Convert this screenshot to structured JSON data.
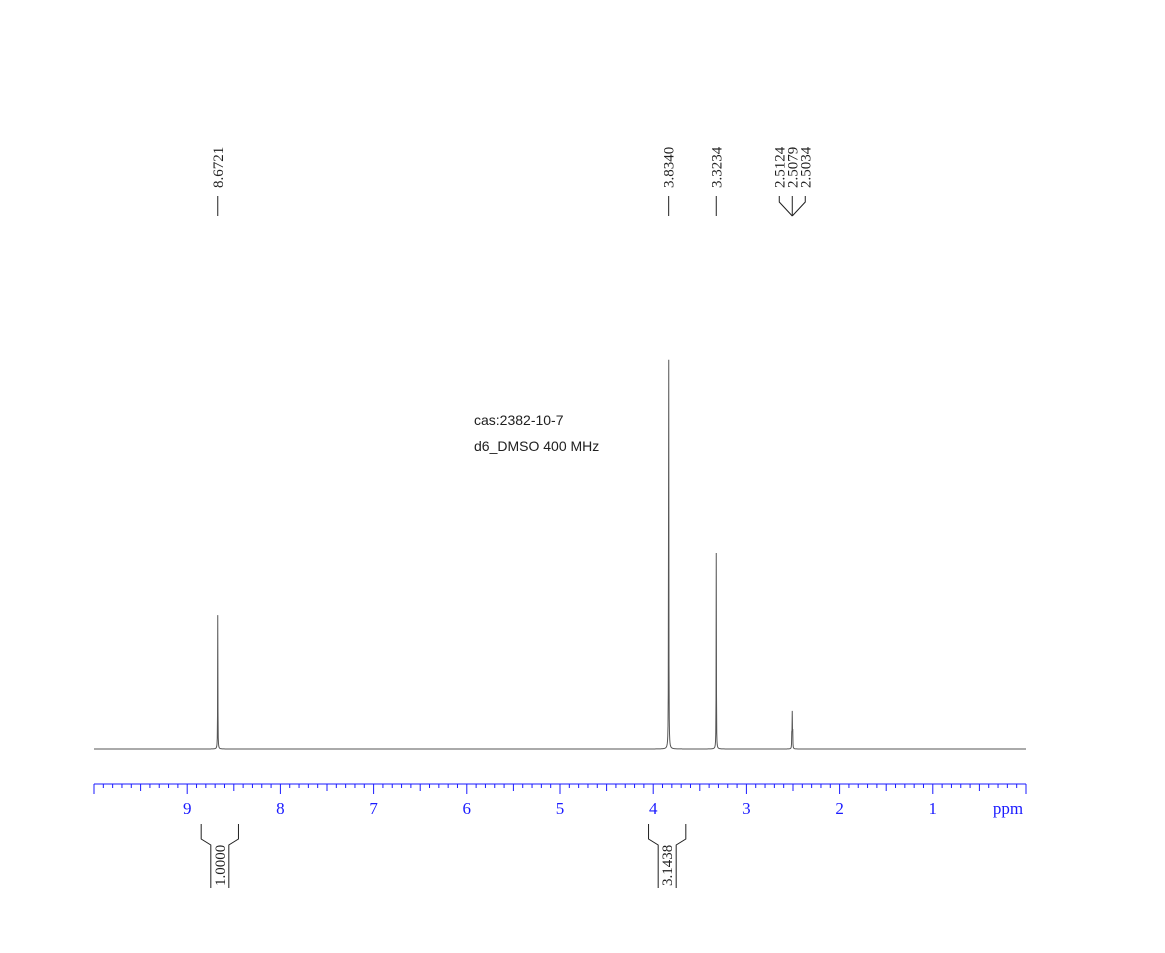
{
  "chart_data": {
    "type": "line",
    "spectrum": "1H NMR",
    "annotations": [
      "cas:2382-10-7",
      "d6_DMSO  400 MHz"
    ],
    "x_unit_label": "ppm",
    "x_reversed": true,
    "xlim": [
      10.0,
      0.0
    ],
    "x_ticks": [
      9,
      8,
      7,
      6,
      5,
      4,
      3,
      2,
      1
    ],
    "x_tick_labels": [
      "9",
      "8",
      "7",
      "6",
      "5",
      "4",
      "3",
      "2",
      "1"
    ],
    "peaks": [
      {
        "ppm": 8.6721,
        "rel_height": 0.27
      },
      {
        "ppm": 3.834,
        "rel_height": 1.0
      },
      {
        "ppm": 3.3234,
        "rel_height": 0.395
      },
      {
        "ppm": 2.5124,
        "rel_height": 0.04
      },
      {
        "ppm": 2.5079,
        "rel_height": 0.068
      },
      {
        "ppm": 2.5034,
        "rel_height": 0.04
      }
    ],
    "peak_labels": [
      {
        "text": "8.6721",
        "ppm": 8.6721
      },
      {
        "text": "3.8340",
        "ppm": 3.834
      },
      {
        "text": "3.3234",
        "ppm": 3.3234
      },
      {
        "text": "2.5124",
        "ppm": 2.5124
      },
      {
        "text": "2.5079",
        "ppm": 2.5079
      },
      {
        "text": "2.5034",
        "ppm": 2.5034
      }
    ],
    "integrals": [
      {
        "from_ppm": 8.85,
        "to_ppm": 8.45,
        "value": "1.0000"
      },
      {
        "from_ppm": 4.05,
        "to_ppm": 3.65,
        "value": "3.1438"
      }
    ],
    "colors": {
      "spectrum": "#555555",
      "axis": "#1a1aff",
      "labels": "#202020"
    }
  }
}
